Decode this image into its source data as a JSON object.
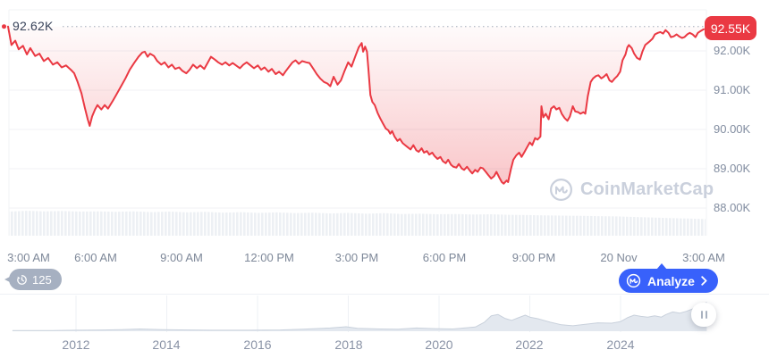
{
  "chart": {
    "open_label": "92.62K",
    "current_label": "92.55K"
  },
  "y_axis": {
    "labels": [
      "92.00K",
      "91.00K",
      "90.00K",
      "89.00K",
      "88.00K"
    ]
  },
  "x_axis": {
    "labels": [
      "3:00 AM",
      "6:00 AM",
      "9:00 AM",
      "12:00 PM",
      "3:00 PM",
      "6:00 PM",
      "9:00 PM",
      "20 Nov",
      "3:00 AM"
    ]
  },
  "toolbar": {
    "history_count": "125",
    "analyze_label": "Analyze"
  },
  "watermark": {
    "text": "CoinMarketCap"
  },
  "timeline": {
    "years": [
      "2012",
      "2014",
      "2016",
      "2018",
      "2020",
      "2022",
      "2024"
    ]
  },
  "colors": {
    "line_red": "#ea3943",
    "badge_red": "#ea3943",
    "analyze_blue": "#3861fb",
    "history_badge_gray": "#a6b0c1",
    "grid": "#f0f2f5",
    "ref_dotted": "#b9c0cb",
    "mini_area_fill": "#e3e8ef",
    "mini_area_stroke": "#c9d1dc",
    "volume_fill": "#edf0f4"
  },
  "chart_data": {
    "type": "line",
    "unit": "K (thousand USD)",
    "open": 92.62,
    "last": 92.55,
    "y_ticks": [
      92,
      91,
      90,
      89,
      88
    ],
    "ylim": [
      87.7,
      92.8
    ],
    "x_unit": "minutes since 3:00 AM",
    "x_tick_minutes": [
      0,
      180,
      360,
      540,
      720,
      900,
      1080,
      1260,
      1440
    ],
    "series": [
      [
        0,
        92.62
      ],
      [
        7,
        92.15
      ],
      [
        15,
        92.26
      ],
      [
        22,
        92.04
      ],
      [
        31,
        92.13
      ],
      [
        39,
        91.91
      ],
      [
        46,
        92.07
      ],
      [
        56,
        91.87
      ],
      [
        65,
        91.93
      ],
      [
        74,
        91.74
      ],
      [
        83,
        91.82
      ],
      [
        93,
        91.65
      ],
      [
        102,
        91.71
      ],
      [
        111,
        91.58
      ],
      [
        120,
        91.63
      ],
      [
        130,
        91.52
      ],
      [
        137,
        91.43
      ],
      [
        144,
        91.21
      ],
      [
        152,
        90.92
      ],
      [
        159,
        90.55
      ],
      [
        165,
        90.26
      ],
      [
        169,
        90.09
      ],
      [
        174,
        90.33
      ],
      [
        180,
        90.51
      ],
      [
        185,
        90.62
      ],
      [
        193,
        90.51
      ],
      [
        200,
        90.62
      ],
      [
        207,
        90.53
      ],
      [
        217,
        90.73
      ],
      [
        224,
        90.88
      ],
      [
        233,
        91.08
      ],
      [
        243,
        91.3
      ],
      [
        252,
        91.52
      ],
      [
        261,
        91.69
      ],
      [
        270,
        91.85
      ],
      [
        278,
        91.96
      ],
      [
        283,
        91.98
      ],
      [
        289,
        91.85
      ],
      [
        294,
        91.93
      ],
      [
        302,
        91.87
      ],
      [
        309,
        91.74
      ],
      [
        317,
        91.65
      ],
      [
        324,
        91.71
      ],
      [
        332,
        91.58
      ],
      [
        339,
        91.65
      ],
      [
        346,
        91.54
      ],
      [
        354,
        91.58
      ],
      [
        361,
        91.49
      ],
      [
        369,
        91.43
      ],
      [
        376,
        91.52
      ],
      [
        383,
        91.65
      ],
      [
        391,
        91.56
      ],
      [
        398,
        91.63
      ],
      [
        406,
        91.54
      ],
      [
        413,
        91.69
      ],
      [
        420,
        91.85
      ],
      [
        428,
        91.78
      ],
      [
        435,
        91.71
      ],
      [
        443,
        91.65
      ],
      [
        450,
        91.71
      ],
      [
        458,
        91.63
      ],
      [
        465,
        91.69
      ],
      [
        472,
        91.63
      ],
      [
        480,
        91.56
      ],
      [
        487,
        91.65
      ],
      [
        494,
        91.71
      ],
      [
        502,
        91.63
      ],
      [
        509,
        91.56
      ],
      [
        517,
        91.63
      ],
      [
        524,
        91.52
      ],
      [
        531,
        91.58
      ],
      [
        539,
        91.47
      ],
      [
        546,
        91.54
      ],
      [
        554,
        91.41
      ],
      [
        561,
        91.47
      ],
      [
        569,
        91.38
      ],
      [
        574,
        91.47
      ],
      [
        582,
        91.6
      ],
      [
        589,
        91.71
      ],
      [
        595,
        91.76
      ],
      [
        602,
        91.67
      ],
      [
        609,
        91.74
      ],
      [
        617,
        91.71
      ],
      [
        624,
        91.69
      ],
      [
        632,
        91.54
      ],
      [
        639,
        91.41
      ],
      [
        646,
        91.3
      ],
      [
        654,
        91.21
      ],
      [
        661,
        91.17
      ],
      [
        667,
        91.1
      ],
      [
        674,
        91.34
      ],
      [
        682,
        91.14
      ],
      [
        689,
        91.25
      ],
      [
        696,
        91.47
      ],
      [
        704,
        91.71
      ],
      [
        711,
        91.6
      ],
      [
        719,
        91.87
      ],
      [
        726,
        92.09
      ],
      [
        732,
        92.2
      ],
      [
        735,
        91.98
      ],
      [
        739,
        92.11
      ],
      [
        743,
        91.98
      ],
      [
        746,
        91.54
      ],
      [
        750,
        90.88
      ],
      [
        754,
        90.7
      ],
      [
        759,
        90.62
      ],
      [
        765,
        90.42
      ],
      [
        770,
        90.29
      ],
      [
        776,
        90.15
      ],
      [
        782,
        90.02
      ],
      [
        787,
        89.98
      ],
      [
        791,
        89.89
      ],
      [
        795,
        89.96
      ],
      [
        800,
        89.82
      ],
      [
        806,
        89.71
      ],
      [
        811,
        89.76
      ],
      [
        817,
        89.65
      ],
      [
        822,
        89.6
      ],
      [
        828,
        89.54
      ],
      [
        833,
        89.49
      ],
      [
        839,
        89.6
      ],
      [
        845,
        89.47
      ],
      [
        850,
        89.43
      ],
      [
        856,
        89.52
      ],
      [
        861,
        89.41
      ],
      [
        867,
        89.45
      ],
      [
        872,
        89.36
      ],
      [
        878,
        89.41
      ],
      [
        883,
        89.32
      ],
      [
        889,
        89.25
      ],
      [
        895,
        89.3
      ],
      [
        900,
        89.19
      ],
      [
        906,
        89.14
      ],
      [
        911,
        89.23
      ],
      [
        917,
        89.1
      ],
      [
        922,
        89.05
      ],
      [
        928,
        89.03
      ],
      [
        933,
        89.12
      ],
      [
        939,
        89.01
      ],
      [
        944,
        88.97
      ],
      [
        950,
        89.05
      ],
      [
        956,
        88.95
      ],
      [
        961,
        88.88
      ],
      [
        967,
        88.97
      ],
      [
        972,
        88.92
      ],
      [
        978,
        89.03
      ],
      [
        983,
        89.01
      ],
      [
        989,
        88.92
      ],
      [
        994,
        88.84
      ],
      [
        1000,
        88.75
      ],
      [
        1006,
        88.81
      ],
      [
        1011,
        88.92
      ],
      [
        1017,
        88.77
      ],
      [
        1022,
        88.66
      ],
      [
        1026,
        88.62
      ],
      [
        1032,
        88.7
      ],
      [
        1035,
        88.66
      ],
      [
        1041,
        88.99
      ],
      [
        1046,
        89.23
      ],
      [
        1052,
        89.34
      ],
      [
        1058,
        89.41
      ],
      [
        1063,
        89.3
      ],
      [
        1069,
        89.43
      ],
      [
        1074,
        89.54
      ],
      [
        1080,
        89.67
      ],
      [
        1085,
        89.6
      ],
      [
        1091,
        89.78
      ],
      [
        1096,
        89.74
      ],
      [
        1102,
        89.82
      ],
      [
        1104,
        90.59
      ],
      [
        1108,
        90.31
      ],
      [
        1113,
        90.4
      ],
      [
        1119,
        90.26
      ],
      [
        1124,
        90.53
      ],
      [
        1130,
        90.59
      ],
      [
        1135,
        90.51
      ],
      [
        1141,
        90.55
      ],
      [
        1146,
        90.4
      ],
      [
        1152,
        90.29
      ],
      [
        1158,
        90.22
      ],
      [
        1163,
        90.33
      ],
      [
        1169,
        90.59
      ],
      [
        1174,
        90.46
      ],
      [
        1180,
        90.44
      ],
      [
        1185,
        90.4
      ],
      [
        1191,
        90.44
      ],
      [
        1195,
        90.4
      ],
      [
        1200,
        90.84
      ],
      [
        1206,
        91.21
      ],
      [
        1211,
        91.3
      ],
      [
        1217,
        91.36
      ],
      [
        1222,
        91.38
      ],
      [
        1228,
        91.3
      ],
      [
        1233,
        91.34
      ],
      [
        1239,
        91.41
      ],
      [
        1245,
        91.25
      ],
      [
        1250,
        91.21
      ],
      [
        1256,
        91.3
      ],
      [
        1261,
        91.36
      ],
      [
        1267,
        91.47
      ],
      [
        1272,
        91.76
      ],
      [
        1278,
        91.91
      ],
      [
        1282,
        92.09
      ],
      [
        1285,
        92.15
      ],
      [
        1291,
        92.07
      ],
      [
        1296,
        91.93
      ],
      [
        1302,
        91.82
      ],
      [
        1308,
        91.78
      ],
      [
        1313,
        91.98
      ],
      [
        1319,
        92.15
      ],
      [
        1324,
        92.2
      ],
      [
        1328,
        92.24
      ],
      [
        1334,
        92.31
      ],
      [
        1339,
        92.42
      ],
      [
        1345,
        92.46
      ],
      [
        1350,
        92.48
      ],
      [
        1356,
        92.44
      ],
      [
        1361,
        92.53
      ],
      [
        1367,
        92.46
      ],
      [
        1372,
        92.35
      ],
      [
        1378,
        92.37
      ],
      [
        1384,
        92.42
      ],
      [
        1389,
        92.37
      ],
      [
        1395,
        92.33
      ],
      [
        1400,
        92.35
      ],
      [
        1406,
        92.42
      ],
      [
        1411,
        92.46
      ],
      [
        1417,
        92.42
      ],
      [
        1423,
        92.35
      ],
      [
        1428,
        92.46
      ],
      [
        1434,
        92.51
      ],
      [
        1440,
        92.55
      ]
    ],
    "volume_relative": [
      0.9,
      0.93,
      0.91,
      0.92,
      0.9,
      0.91,
      0.89,
      0.91,
      0.88,
      0.9,
      0.87,
      0.89,
      0.86,
      0.88,
      0.85,
      0.87,
      0.84,
      0.86,
      0.83,
      0.85,
      0.82,
      0.84,
      0.81,
      0.82,
      0.8,
      0.81,
      0.79,
      0.8,
      0.78,
      0.77,
      0.76,
      0.75,
      0.74,
      0.73,
      0.72,
      0.7,
      0.68,
      0.66,
      0.64,
      0.62
    ],
    "history": {
      "type": "area",
      "year_ticks": [
        2012,
        2014,
        2016,
        2018,
        2020,
        2022,
        2024
      ],
      "points": [
        [
          2010.6,
          0.02
        ],
        [
          2011.5,
          0.02
        ],
        [
          2012,
          0.03
        ],
        [
          2012.6,
          0.04
        ],
        [
          2013,
          0.05
        ],
        [
          2013.4,
          0.07
        ],
        [
          2013.9,
          0.05
        ],
        [
          2014.5,
          0.04
        ],
        [
          2015,
          0.03
        ],
        [
          2015.8,
          0.03
        ],
        [
          2016.5,
          0.04
        ],
        [
          2017,
          0.06
        ],
        [
          2017.6,
          0.1
        ],
        [
          2017.95,
          0.14
        ],
        [
          2018.2,
          0.09
        ],
        [
          2018.7,
          0.07
        ],
        [
          2019.1,
          0.06
        ],
        [
          2019.5,
          0.1
        ],
        [
          2019.9,
          0.08
        ],
        [
          2020.3,
          0.07
        ],
        [
          2020.8,
          0.13
        ],
        [
          2021,
          0.28
        ],
        [
          2021.15,
          0.48
        ],
        [
          2021.3,
          0.52
        ],
        [
          2021.45,
          0.4
        ],
        [
          2021.6,
          0.34
        ],
        [
          2021.75,
          0.42
        ],
        [
          2021.9,
          0.5
        ],
        [
          2022,
          0.44
        ],
        [
          2022.2,
          0.38
        ],
        [
          2022.45,
          0.28
        ],
        [
          2022.7,
          0.2
        ],
        [
          2022.95,
          0.17
        ],
        [
          2023.2,
          0.21
        ],
        [
          2023.5,
          0.26
        ],
        [
          2023.8,
          0.25
        ],
        [
          2024,
          0.3
        ],
        [
          2024.15,
          0.42
        ],
        [
          2024.3,
          0.5
        ],
        [
          2024.45,
          0.46
        ],
        [
          2024.6,
          0.44
        ],
        [
          2024.75,
          0.48
        ],
        [
          2024.9,
          0.44
        ],
        [
          2025,
          0.52
        ],
        [
          2025.15,
          0.6
        ],
        [
          2025.3,
          0.56
        ],
        [
          2025.45,
          0.62
        ],
        [
          2025.6,
          0.7
        ],
        [
          2025.7,
          0.78
        ],
        [
          2025.8,
          0.82
        ],
        [
          2025.9,
          0.9
        ]
      ]
    }
  }
}
